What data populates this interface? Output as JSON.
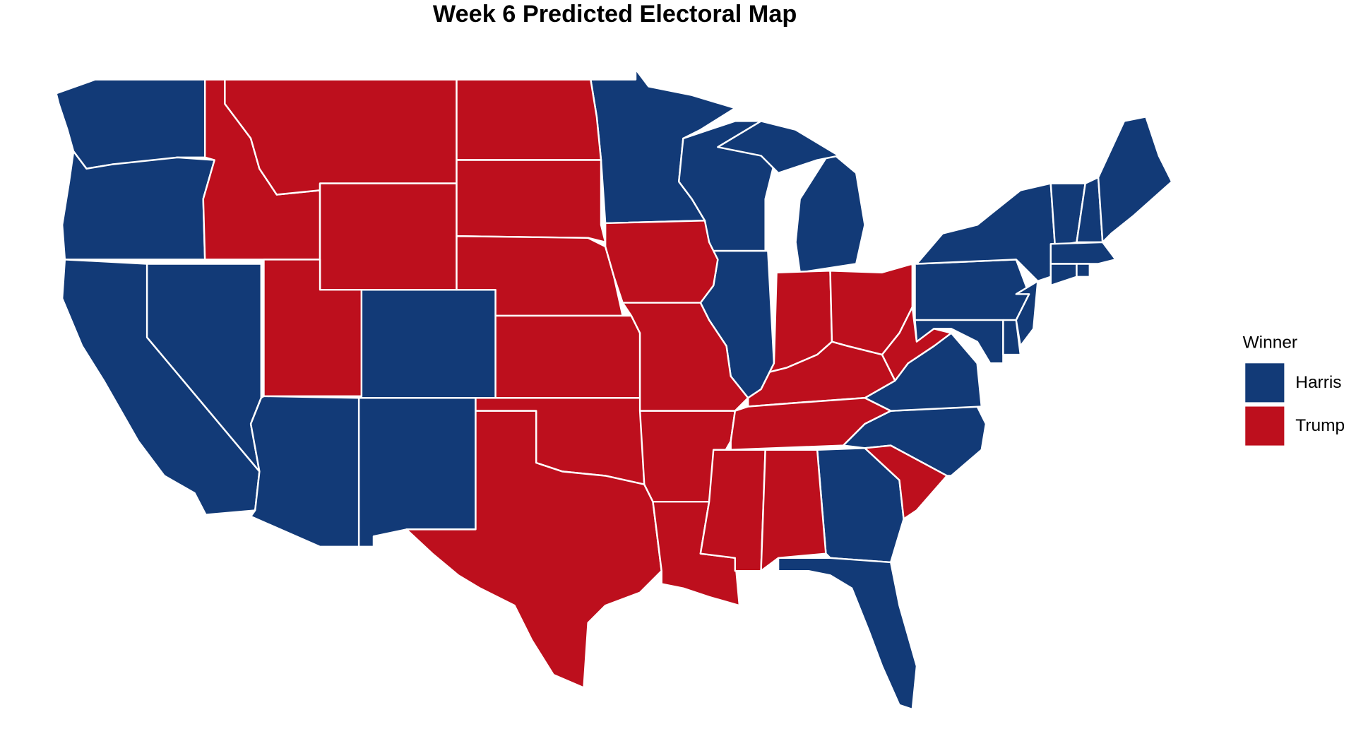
{
  "title": "Week 6 Predicted Electoral Map",
  "legend": {
    "title": "Winner",
    "items": [
      {
        "label": "Harris",
        "color": "#123a77"
      },
      {
        "label": "Trump",
        "color": "#bd0f1d"
      }
    ]
  }
}
